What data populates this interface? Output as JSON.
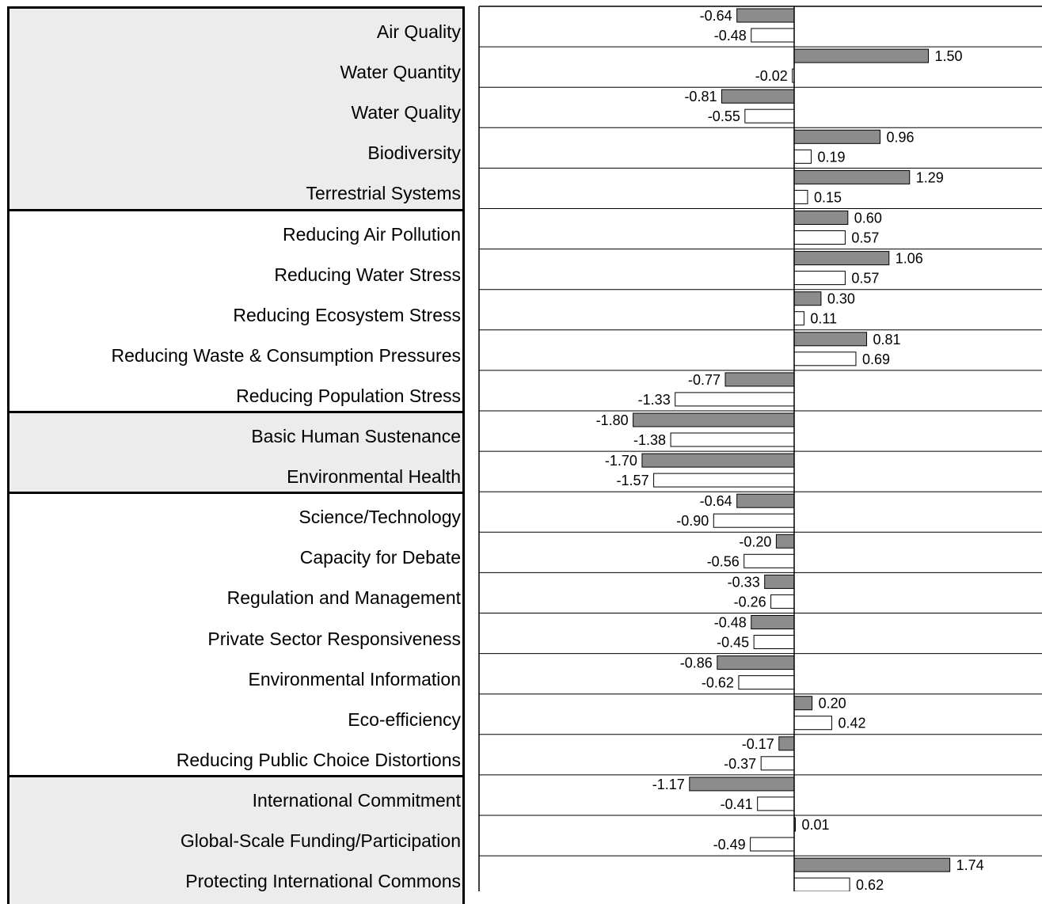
{
  "colors": {
    "series_1": "#8c8c8c",
    "series_2": "#ffffff",
    "group_shade": "#ececec"
  },
  "groups": [
    {
      "shaded": true,
      "rows": 5
    },
    {
      "shaded": false,
      "rows": 5
    },
    {
      "shaded": true,
      "rows": 2
    },
    {
      "shaded": false,
      "rows": 7
    },
    {
      "shaded": true,
      "rows": 3
    }
  ],
  "chart_data": {
    "type": "bar",
    "orientation": "horizontal",
    "categories": [
      "Air Quality",
      "Water Quantity",
      "Water Quality",
      "Biodiversity",
      "Terrestrial Systems",
      "Reducing Air Pollution",
      "Reducing Water Stress",
      "Reducing Ecosystem Stress",
      "Reducing Waste & Consumption Pressures",
      "Reducing Population Stress",
      "Basic Human Sustenance",
      "Environmental Health",
      "Science/Technology",
      "Capacity for Debate",
      "Regulation and Management",
      "Private Sector Responsiveness",
      "Environmental Information",
      "Eco-efficiency",
      "Reducing Public Choice Distortions",
      "International Commitment",
      "Global-Scale Funding/Participation",
      "Protecting International Commons"
    ],
    "series": [
      {
        "values": [
          -0.64,
          1.5,
          -0.81,
          0.96,
          1.29,
          0.6,
          1.06,
          0.3,
          0.81,
          -0.77,
          -1.8,
          -1.7,
          -0.64,
          -0.2,
          -0.33,
          -0.48,
          -0.86,
          0.2,
          -0.17,
          -1.17,
          0.01,
          1.74
        ]
      },
      {
        "values": [
          -0.48,
          -0.02,
          -0.55,
          0.19,
          0.15,
          0.57,
          0.57,
          0.11,
          0.69,
          -1.33,
          -1.38,
          -1.57,
          -0.9,
          -0.56,
          -0.26,
          -0.45,
          -0.62,
          0.42,
          -0.37,
          -0.41,
          -0.49,
          0.62
        ]
      }
    ],
    "value_labels": [
      [
        "-0.64",
        "1.50",
        "-0.81",
        "0.96",
        "1.29",
        "0.60",
        "1.06",
        "0.30",
        "0.81",
        "-0.77",
        "-1.80",
        "-1.70",
        "-0.64",
        "-0.20",
        "-0.33",
        "-0.48",
        "-0.86",
        "0.20",
        "-0.17",
        "-1.17",
        "0.01",
        "1.74"
      ],
      [
        "-0.48",
        "-0.02",
        "-0.55",
        "0.19",
        "0.15",
        "0.57",
        "0.57",
        "0.11",
        "0.69",
        "-1.33",
        "-1.38",
        "-1.57",
        "-0.90",
        "-0.56",
        "-0.26",
        "-0.45",
        "-0.62",
        "0.42",
        "-0.37",
        "-0.41",
        "-0.49",
        "0.62"
      ]
    ],
    "xlim": [
      -1.8,
      2.75
    ],
    "grid": false,
    "legend": "none"
  }
}
